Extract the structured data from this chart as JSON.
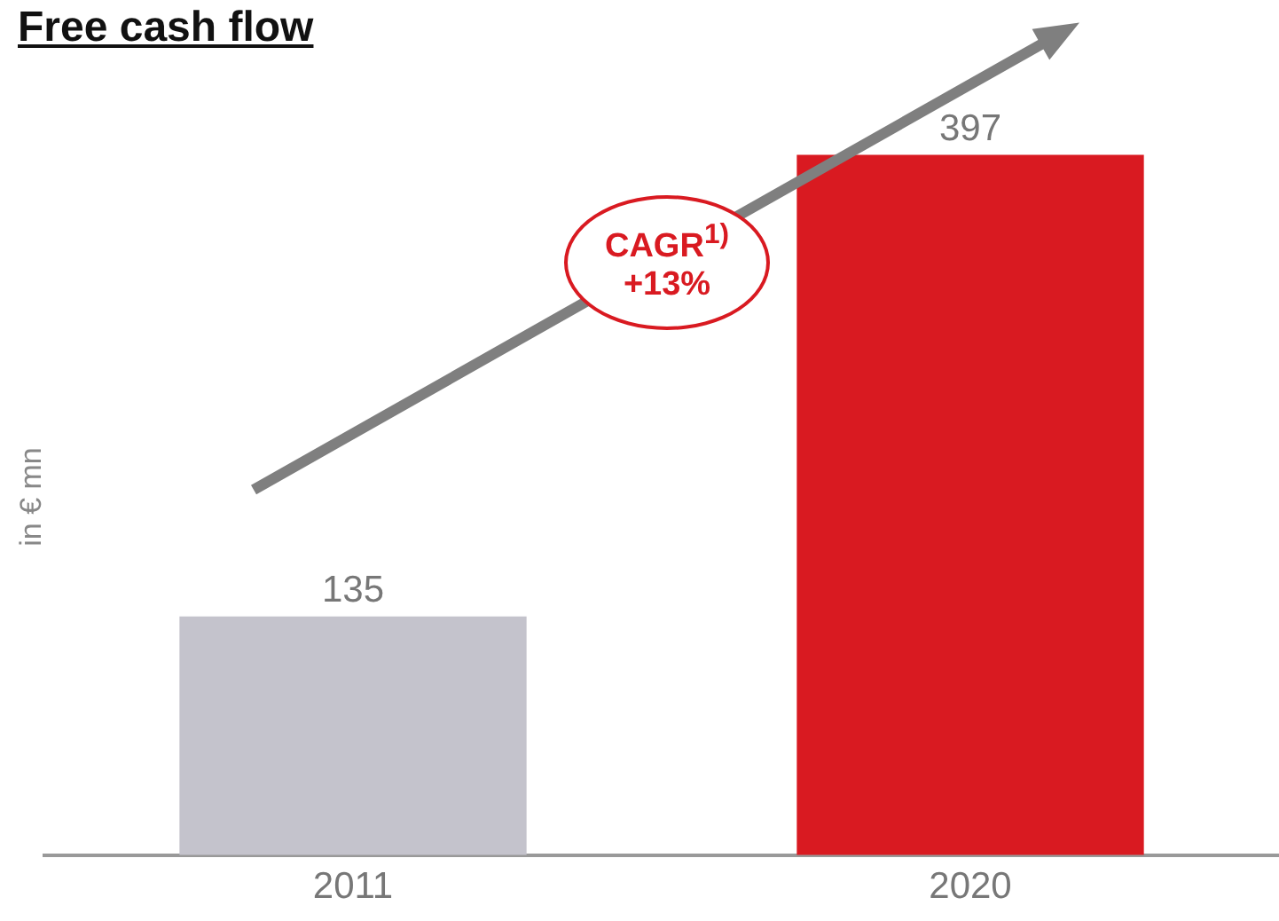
{
  "chart_data": {
    "type": "bar",
    "title": "Free cash flow",
    "ylabel": "in € mn",
    "categories": [
      "2011",
      "2020"
    ],
    "values": [
      135,
      397
    ],
    "colors": [
      "#c4c3cc",
      "#d91a21"
    ],
    "data_labels": true,
    "legend": false,
    "grid": false,
    "annotations": [
      "CAGR$^{1)}$ +13%"
    ]
  }
}
